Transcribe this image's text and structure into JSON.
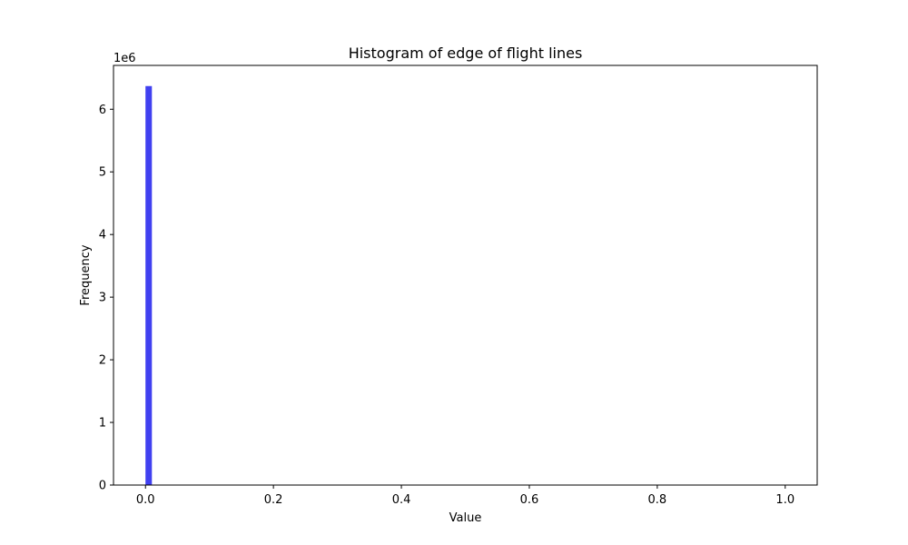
{
  "chart_data": {
    "type": "bar",
    "title": "Histogram of edge of flight lines",
    "xlabel": "Value",
    "ylabel": "Frequency",
    "y_offset_label": "1e6",
    "xlim": [
      -0.05,
      1.05
    ],
    "ylim": [
      0,
      6.7
    ],
    "xticks": [
      0.0,
      0.2,
      0.4,
      0.6,
      0.8,
      1.0
    ],
    "xtick_labels": [
      "0.0",
      "0.2",
      "0.4",
      "0.6",
      "0.8",
      "1.0"
    ],
    "yticks": [
      0,
      1,
      2,
      3,
      4,
      5,
      6
    ],
    "ytick_labels": [
      "0",
      "1",
      "2",
      "3",
      "4",
      "5",
      "6"
    ],
    "bins": [
      {
        "x0": 0.0,
        "x1": 0.01,
        "value": 6.37
      }
    ],
    "bar_color": "#4040f0",
    "grid": false,
    "legend": "none"
  }
}
